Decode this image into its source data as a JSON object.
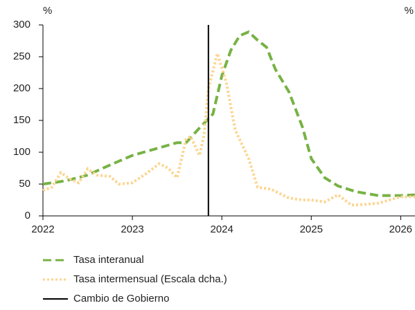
{
  "chart_data": {
    "type": "line",
    "y_label": "%",
    "y2_label": "%",
    "x": null,
    "xlim": [
      2022,
      2026.16
    ],
    "xticks": [
      2022,
      2023,
      2024,
      2025,
      2026
    ],
    "ylim": [
      0,
      300
    ],
    "yticks": [
      0,
      50,
      100,
      150,
      200,
      250,
      300
    ],
    "y2lim": [
      0,
      30
    ],
    "grid": false,
    "series": [
      {
        "name": "Tasa interanual",
        "color": "#77b244",
        "style": "dashed",
        "x": [
          2022.0,
          2022.25,
          2022.5,
          2022.75,
          2023.0,
          2023.25,
          2023.5,
          2023.6,
          2023.75,
          2023.9,
          2024.0,
          2024.1,
          2024.2,
          2024.3,
          2024.4,
          2024.5,
          2024.6,
          2024.75,
          2024.9,
          2025.0,
          2025.15,
          2025.3,
          2025.5,
          2025.75,
          2026.0,
          2026.16
        ],
        "values": [
          50,
          55,
          64,
          80,
          95,
          105,
          115,
          115,
          138,
          160,
          220,
          260,
          283,
          289,
          276,
          265,
          230,
          195,
          140,
          90,
          60,
          47,
          38,
          32,
          32,
          33
        ]
      },
      {
        "name": "Tasa intermensual (Escala dcha.)",
        "color": "#fcd590",
        "style": "dotted",
        "axis": "y2",
        "x": [
          2022.0,
          2022.1,
          2022.2,
          2022.3,
          2022.4,
          2022.5,
          2022.6,
          2022.75,
          2022.85,
          2023.0,
          2023.15,
          2023.3,
          2023.4,
          2023.5,
          2023.6,
          2023.65,
          2023.75,
          2023.8,
          2023.85,
          2023.95,
          2024.05,
          2024.15,
          2024.3,
          2024.4,
          2024.55,
          2024.75,
          2024.9,
          2025.0,
          2025.15,
          2025.3,
          2025.45,
          2025.6,
          2025.75,
          2025.9,
          2026.0,
          2026.16
        ],
        "values": [
          4.0,
          4.5,
          6.8,
          5.8,
          5.2,
          7.4,
          6.4,
          6.2,
          5.0,
          5.2,
          6.6,
          8.2,
          7.5,
          6.0,
          12.0,
          12.5,
          9.5,
          12.6,
          20.0,
          25.5,
          21.0,
          13.5,
          9.0,
          4.5,
          4.2,
          2.8,
          2.5,
          2.5,
          2.2,
          3.3,
          1.7,
          1.8,
          2.0,
          2.6,
          3.0,
          3.0
        ]
      }
    ],
    "vline": {
      "name": "Cambio de Gobierno",
      "x": 2023.85,
      "color": "#000000"
    }
  }
}
